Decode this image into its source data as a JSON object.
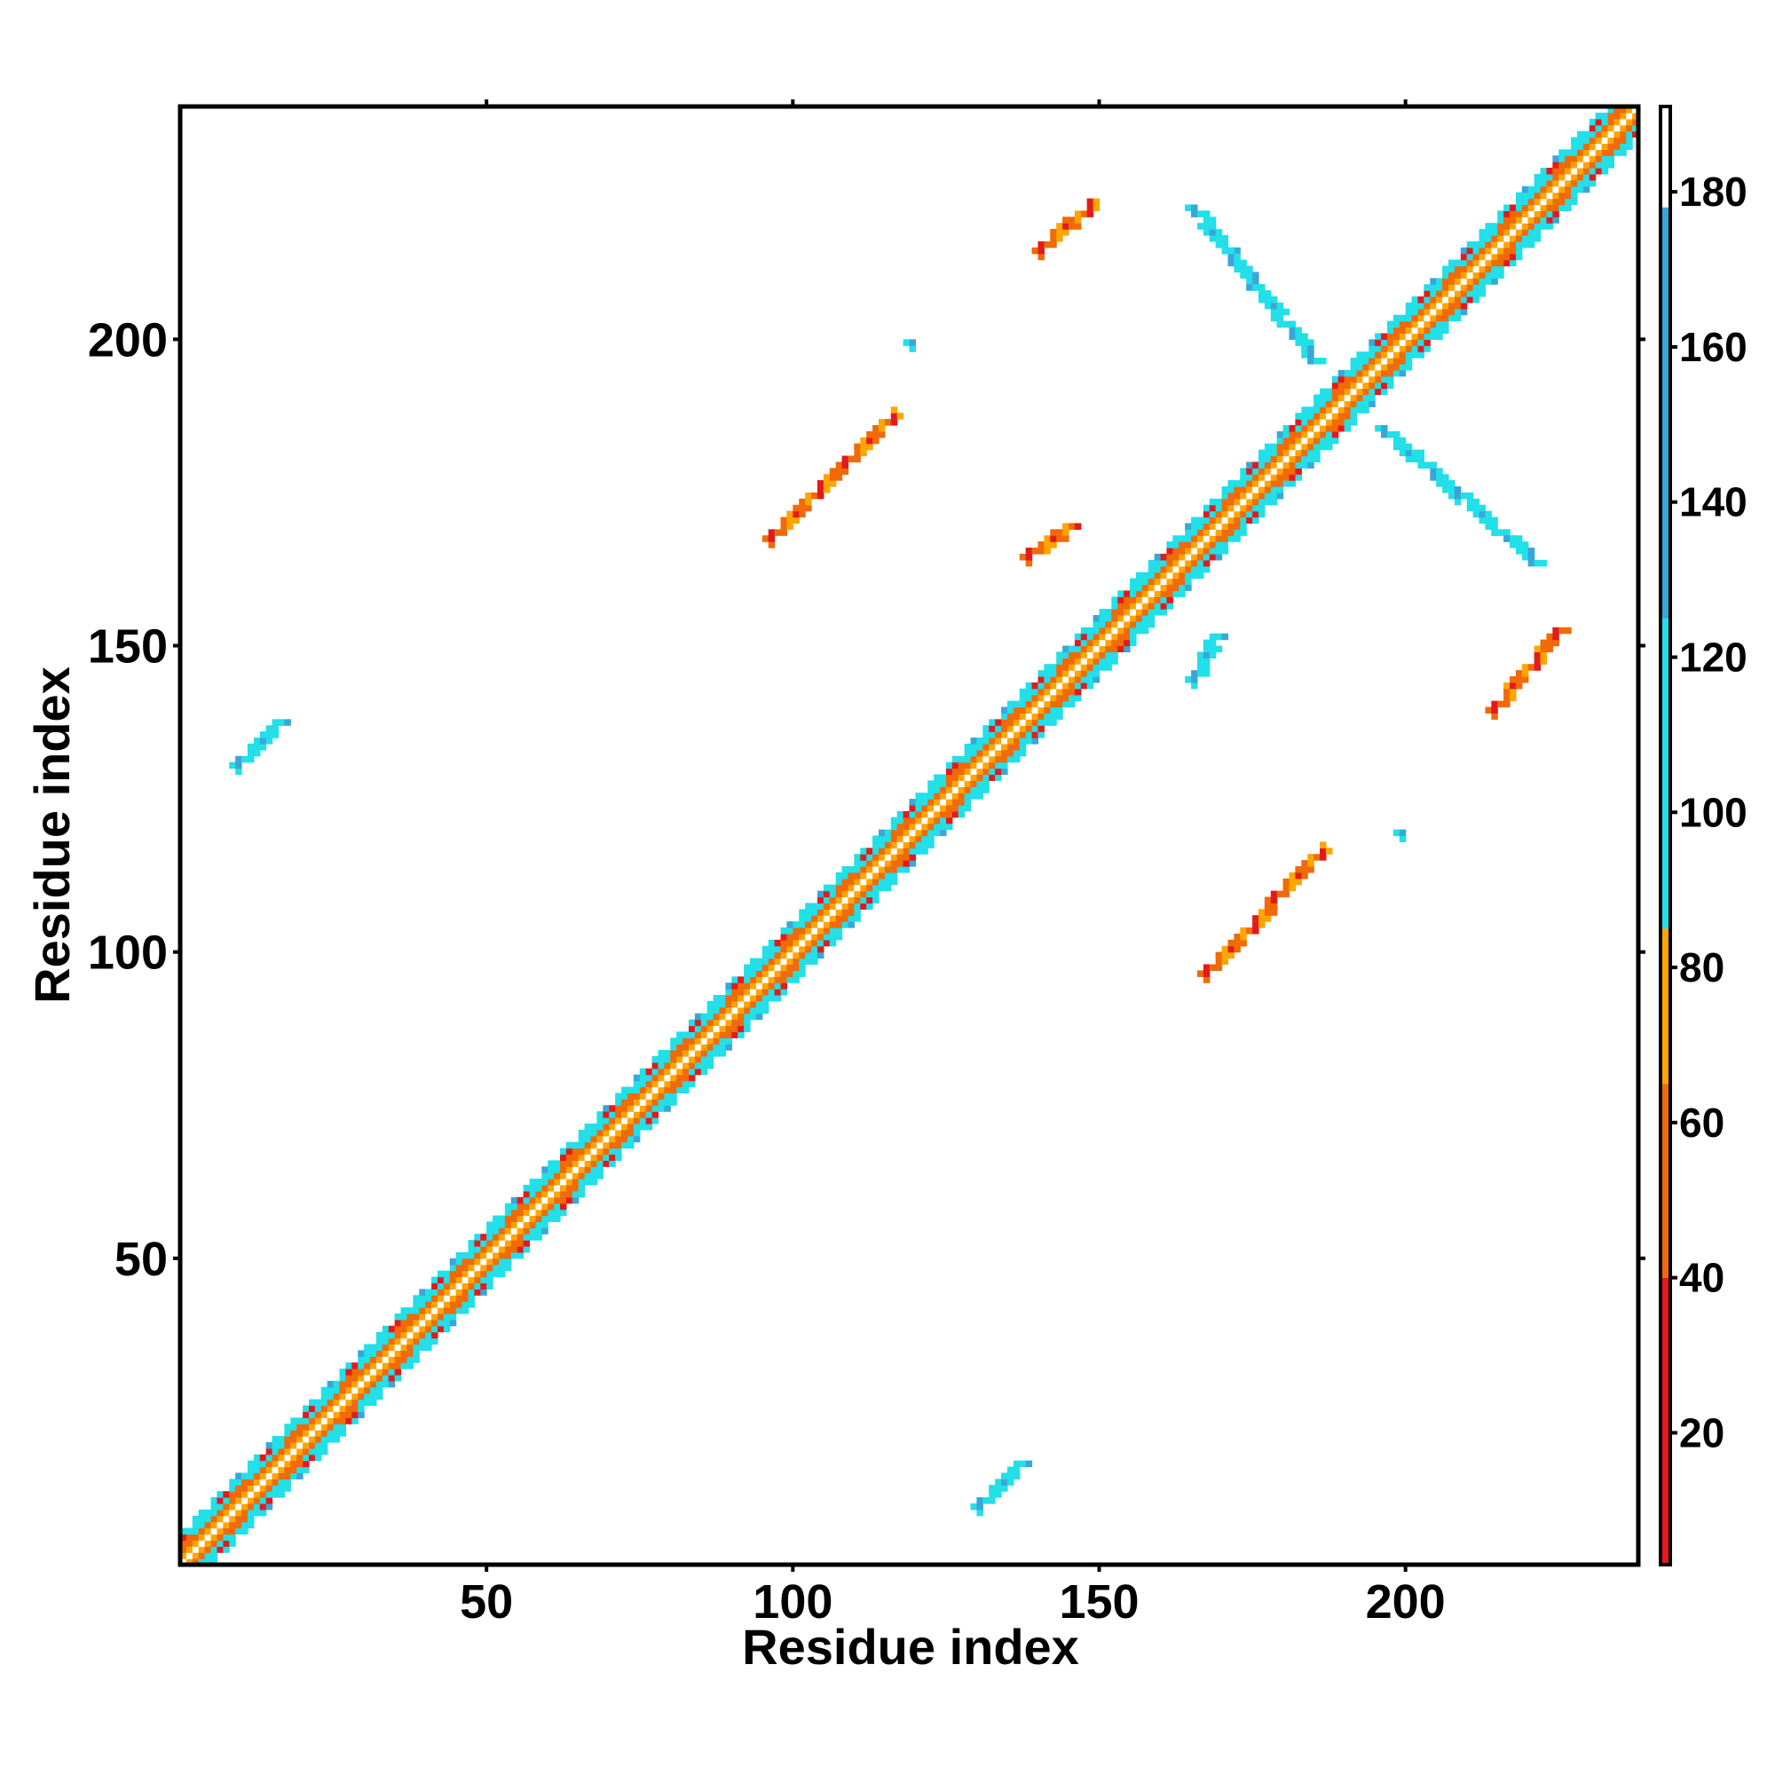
{
  "chart_data": {
    "type": "heatmap",
    "title": "",
    "xlabel": "Residue index",
    "ylabel": "Residue index",
    "xlim": [
      0,
      238
    ],
    "ylim": [
      0,
      238
    ],
    "x_ticks": [
      50,
      100,
      150,
      200
    ],
    "y_ticks": [
      50,
      100,
      150,
      200
    ],
    "colorbar": {
      "range": [
        3,
        191
      ],
      "ticks": [
        20,
        40,
        60,
        80,
        100,
        120,
        140,
        160,
        180
      ],
      "bands": [
        {
          "from": 3,
          "to": 40,
          "color": "#e31a1c"
        },
        {
          "from": 40,
          "to": 65,
          "color": "#f06a08"
        },
        {
          "from": 65,
          "to": 85,
          "color": "#ffa500"
        },
        {
          "from": 85,
          "to": 125,
          "color": "#22dfe8"
        },
        {
          "from": 125,
          "to": 178,
          "color": "#3aa6d8"
        },
        {
          "from": 178,
          "to": 191,
          "color": "#ffffff"
        }
      ]
    },
    "diagonal_band": {
      "start": 1,
      "end": 238,
      "half_width": 5
    },
    "contacts": [
      {
        "name": "sheet-a",
        "x": [
          141,
          150
        ],
        "y": [
          215,
          223
        ],
        "value": 45
      },
      {
        "name": "sheet-b",
        "x": [
          166,
          186
        ],
        "y": [
          197,
          222
        ],
        "value": 105
      },
      {
        "name": "sheet-c",
        "x": [
          97,
          117
        ],
        "y": [
          168,
          188
        ],
        "value": 55
      },
      {
        "name": "sheet-d",
        "x": [
          139,
          146
        ],
        "y": [
          165,
          170
        ],
        "value": 80
      },
      {
        "name": "sheet-e",
        "x": [
          166,
          170
        ],
        "y": [
          145,
          152
        ],
        "value": 95
      },
      {
        "name": "sheet-f",
        "x": [
          168,
          187
        ],
        "y": [
          97,
          117
        ],
        "value": 55
      },
      {
        "name": "sheet-g",
        "x": [
          197,
          222
        ],
        "y": [
          164,
          186
        ],
        "value": 105
      },
      {
        "name": "sheet-h",
        "x": [
          215,
          226
        ],
        "y": [
          140,
          153
        ],
        "value": 45
      },
      {
        "name": "isolated-1",
        "x": [
          10,
          17
        ],
        "y": [
          131,
          138
        ],
        "value": 100
      },
      {
        "name": "isolated-2",
        "x": [
          131,
          138
        ],
        "y": [
          10,
          17
        ],
        "value": 100
      },
      {
        "name": "isolated-3",
        "x": [
          120,
          120
        ],
        "y": [
          200,
          200
        ],
        "value": 100
      },
      {
        "name": "isolated-4",
        "x": [
          200,
          200
        ],
        "y": [
          120,
          120
        ],
        "value": 100
      }
    ]
  }
}
